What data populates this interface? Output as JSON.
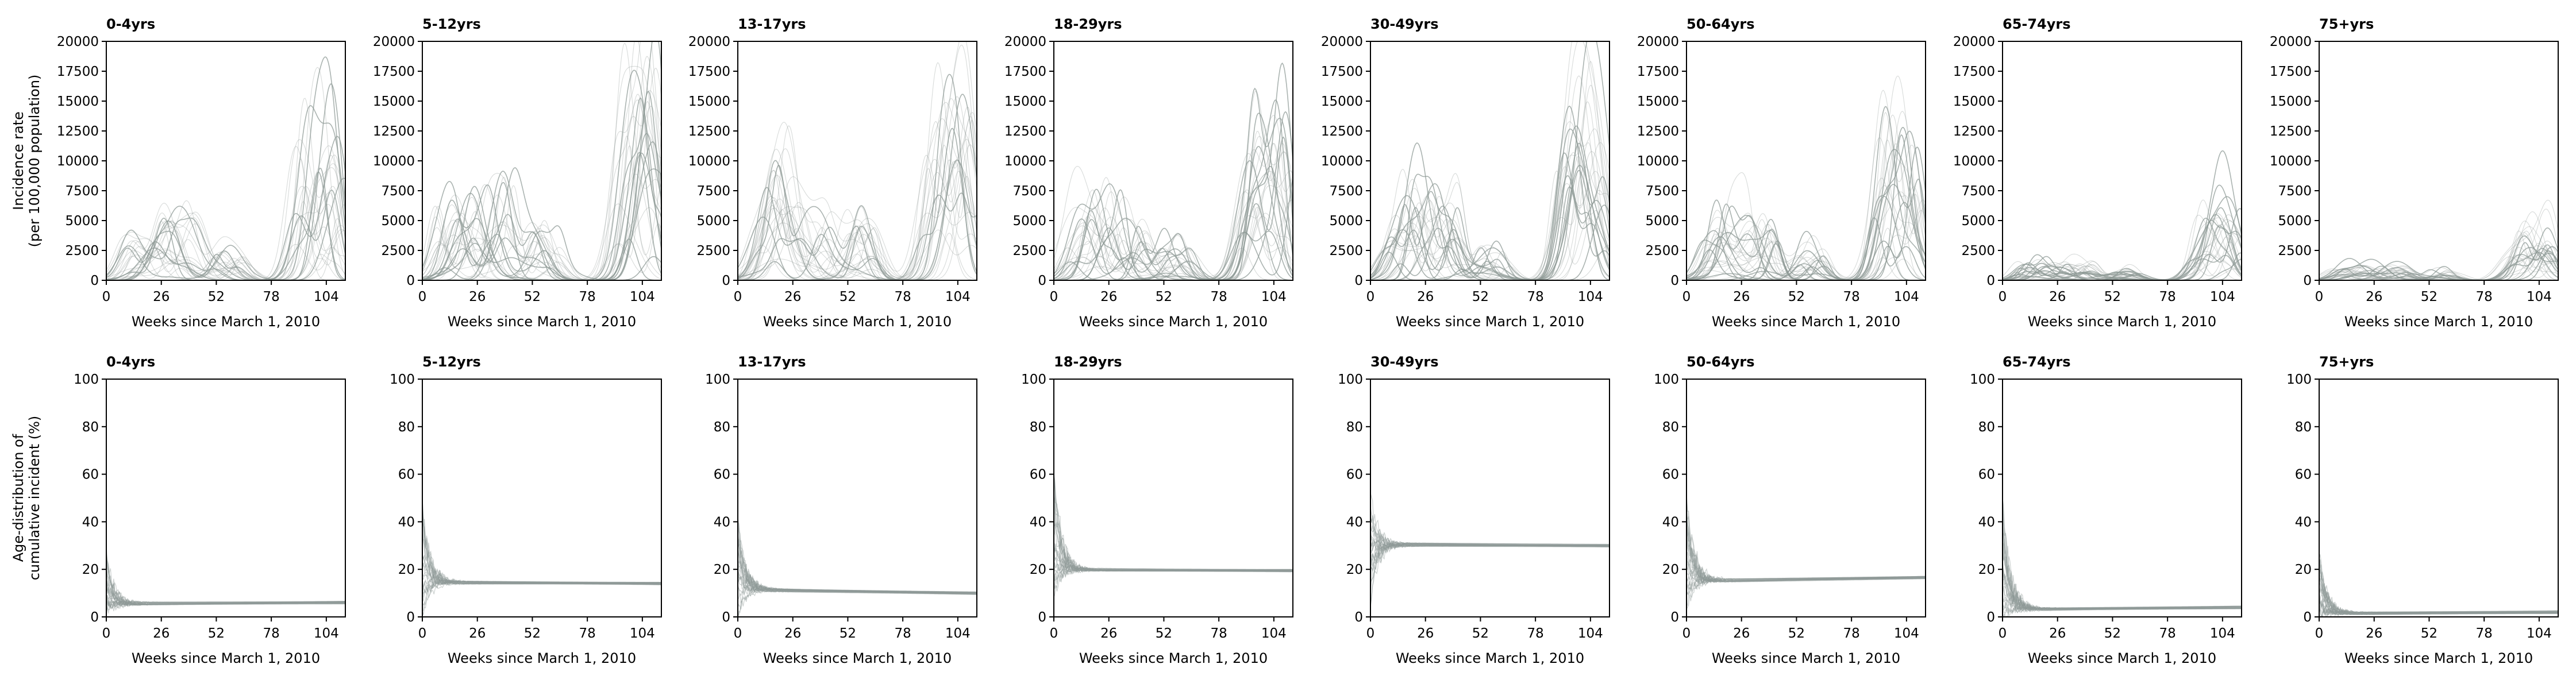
{
  "figure": {
    "x_axis_label": "Weeks since March 1, 2010",
    "row_labels": [
      [
        "Incidence rate",
        "(per 100,000 population)"
      ],
      [
        "Age-distribution of",
        "cumulative incident (%)"
      ]
    ],
    "line_color": "#8e9996",
    "panel_titles": [
      "0-4yrs",
      "5-12yrs",
      "13-17yrs",
      "18-29yrs",
      "30-49yrs",
      "50-64yrs",
      "65-74yrs",
      "75+yrs"
    ]
  },
  "chart_data": [
    {
      "type": "line",
      "row": "incidence_rate",
      "xlim": [
        0,
        113
      ],
      "ylim": [
        0,
        20000
      ],
      "xticks": [
        0,
        26,
        52,
        78,
        104
      ],
      "yticks": [
        0,
        2500,
        5000,
        7500,
        10000,
        12500,
        15000,
        17500,
        20000
      ],
      "note": "Each panel shows many thin gray simulated trajectories; peaks listed approximate the visible curve maxima.",
      "panels": [
        {
          "title": "0-4yrs",
          "peaks": [
            [
              12,
              3800
            ],
            [
              22,
              3200
            ],
            [
              30,
              4200
            ],
            [
              35,
              1800
            ],
            [
              40,
              5300
            ],
            [
              55,
              2600
            ],
            [
              62,
              2000
            ],
            [
              92,
              10900
            ],
            [
              98,
              7600
            ],
            [
              103,
              10800
            ],
            [
              106,
              6600
            ],
            [
              110,
              8000
            ]
          ]
        },
        {
          "title": "5-12yrs",
          "peaks": [
            [
              10,
              6500
            ],
            [
              18,
              5200
            ],
            [
              28,
              6800
            ],
            [
              34,
              3500
            ],
            [
              40,
              9000
            ],
            [
              55,
              5000
            ],
            [
              62,
              3500
            ],
            [
              95,
              12000
            ],
            [
              100,
              10800
            ],
            [
              104,
              14500
            ],
            [
              108,
              9000
            ],
            [
              112,
              11000
            ]
          ]
        },
        {
          "title": "13-17yrs",
          "peaks": [
            [
              10,
              6000
            ],
            [
              16,
              5500
            ],
            [
              20,
              9000
            ],
            [
              28,
              8700
            ],
            [
              40,
              7200
            ],
            [
              55,
              5500
            ],
            [
              62,
              4000
            ],
            [
              92,
              10500
            ],
            [
              98,
              13800
            ],
            [
              103,
              11000
            ],
            [
              107,
              13500
            ],
            [
              111,
              10700
            ]
          ]
        },
        {
          "title": "18-29yrs",
          "peaks": [
            [
              10,
              4500
            ],
            [
              16,
              6300
            ],
            [
              22,
              6000
            ],
            [
              30,
              7000
            ],
            [
              40,
              4500
            ],
            [
              55,
              3500
            ],
            [
              62,
              3000
            ],
            [
              92,
              10200
            ],
            [
              98,
              12300
            ],
            [
              102,
              9500
            ],
            [
              107,
              12000
            ],
            [
              111,
              11000
            ]
          ]
        },
        {
          "title": "30-49yrs",
          "peaks": [
            [
              10,
              4800
            ],
            [
              18,
              6500
            ],
            [
              24,
              5600
            ],
            [
              32,
              6700
            ],
            [
              40,
              5400
            ],
            [
              56,
              3400
            ],
            [
              62,
              3000
            ],
            [
              92,
              10500
            ],
            [
              96,
              9000
            ],
            [
              101,
              12500
            ],
            [
              106,
              11000
            ],
            [
              110,
              9800
            ]
          ]
        },
        {
          "title": "50-64yrs",
          "peaks": [
            [
              10,
              3500
            ],
            [
              18,
              5300
            ],
            [
              24,
              4400
            ],
            [
              32,
              4900
            ],
            [
              40,
              4500
            ],
            [
              56,
              2600
            ],
            [
              62,
              2200
            ],
            [
              92,
              8500
            ],
            [
              96,
              10400
            ],
            [
              101,
              7500
            ],
            [
              105,
              10200
            ],
            [
              110,
              7600
            ]
          ]
        },
        {
          "title": "65-74yrs",
          "peaks": [
            [
              10,
              1500
            ],
            [
              20,
              1800
            ],
            [
              30,
              1400
            ],
            [
              40,
              1600
            ],
            [
              56,
              1000
            ],
            [
              62,
              900
            ],
            [
              92,
              2500
            ],
            [
              98,
              6200
            ],
            [
              104,
              3500
            ],
            [
              107,
              5500
            ],
            [
              111,
              4200
            ]
          ]
        },
        {
          "title": "75+yrs",
          "peaks": [
            [
              10,
              1000
            ],
            [
              20,
              1200
            ],
            [
              30,
              1100
            ],
            [
              40,
              1200
            ],
            [
              56,
              900
            ],
            [
              62,
              700
            ],
            [
              92,
              2200
            ],
            [
              98,
              4500
            ],
            [
              104,
              3000
            ],
            [
              107,
              3500
            ],
            [
              111,
              2800
            ]
          ]
        }
      ]
    },
    {
      "type": "line",
      "row": "age_distribution",
      "xlim": [
        0,
        113
      ],
      "ylim": [
        0,
        100
      ],
      "xticks": [
        0,
        26,
        52,
        78,
        104
      ],
      "yticks": [
        0,
        20,
        40,
        60,
        80,
        100
      ],
      "note": "Trajectories start widely spread and converge to a steady level.",
      "panels": [
        {
          "title": "0-4yrs",
          "initial_max": 28,
          "initial_min": 0,
          "steady": 5.5,
          "end": 6.0
        },
        {
          "title": "5-12yrs",
          "initial_max": 48,
          "initial_min": 0,
          "steady": 14.5,
          "end": 14.0
        },
        {
          "title": "13-17yrs",
          "initial_max": 42,
          "initial_min": 0,
          "steady": 11.5,
          "end": 10.0
        },
        {
          "title": "18-29yrs",
          "initial_max": 62,
          "initial_min": 0,
          "steady": 20.0,
          "end": 19.5
        },
        {
          "title": "30-49yrs",
          "initial_max": 52,
          "initial_min": 5,
          "steady": 30.5,
          "end": 30.0
        },
        {
          "title": "50-64yrs",
          "initial_max": 52,
          "initial_min": 2,
          "steady": 15.0,
          "end": 16.5
        },
        {
          "title": "65-74yrs",
          "initial_max": 52,
          "initial_min": 0,
          "steady": 3.0,
          "end": 4.0
        },
        {
          "title": "75+yrs",
          "initial_max": 28,
          "initial_min": 0,
          "steady": 1.5,
          "end": 2.0
        }
      ]
    }
  ]
}
